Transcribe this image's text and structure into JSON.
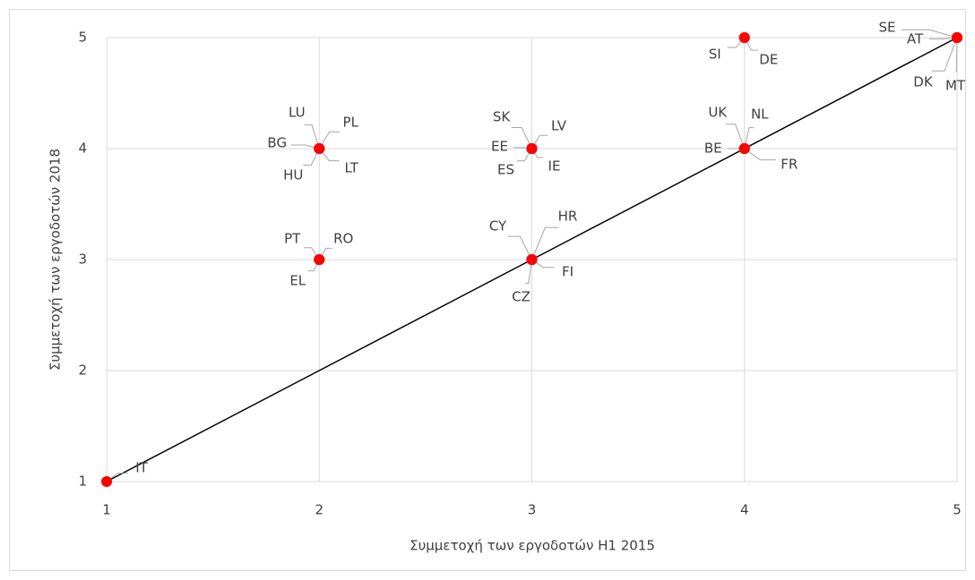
{
  "chart_data": {
    "type": "scatter",
    "x_label": "Συμμετοχή των εργοδοτών Η1 2015",
    "y_label": "Συμμετοχή των εργοδοτών 2018",
    "xlim": [
      1,
      5
    ],
    "ylim": [
      1,
      5
    ],
    "xticks": [
      1,
      2,
      3,
      4,
      5
    ],
    "yticks": [
      1,
      2,
      3,
      4,
      5
    ],
    "grid": true,
    "color": "#ff0000",
    "labels": [
      "IT",
      "PL",
      "LU",
      "BG",
      "HU",
      "LT",
      "PT",
      "RO",
      "EL",
      "SK",
      "LV",
      "EE",
      "IE",
      "ES",
      "CY",
      "HR",
      "FI",
      "CZ",
      "SI",
      "DE",
      "UK",
      "NL",
      "BE",
      "FR",
      "SE",
      "AT",
      "DK",
      "MT"
    ],
    "x": [
      1,
      2,
      2,
      2,
      2,
      2,
      2,
      2,
      2,
      3,
      3,
      3,
      3,
      3,
      3,
      3,
      3,
      3,
      4,
      4,
      4,
      4,
      4,
      4,
      5,
      5,
      5,
      5
    ],
    "values": [
      1,
      4,
      4,
      4,
      4,
      4,
      3,
      3,
      3,
      4,
      4,
      4,
      4,
      4,
      3,
      3,
      3,
      3,
      5,
      5,
      4,
      4,
      4,
      4,
      5,
      5,
      5,
      5
    ],
    "reference_line": {
      "x": [
        1,
        5
      ],
      "y": [
        1,
        5
      ]
    }
  }
}
